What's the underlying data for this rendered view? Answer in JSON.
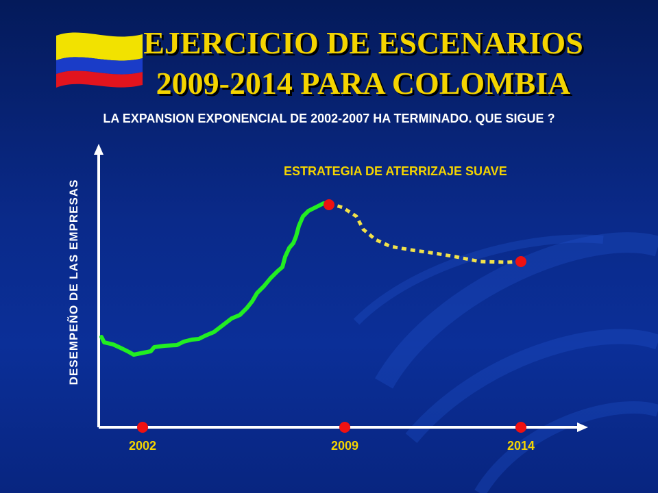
{
  "slide": {
    "title_line1": "EJERCICIO DE ESCENARIOS",
    "title_line2": "2009-2014 PARA  COLOMBIA",
    "subtitle": "LA EXPANSION EXPONENCIAL DE 2002-2007 HA TERMINADO. QUE SIGUE ?",
    "scenario_label": "ESTRATEGIA DE ATERRIZAJE SUAVE",
    "flag": {
      "colors": [
        "#f2e200",
        "#1a3cc8",
        "#e2141e"
      ]
    }
  },
  "chart_data": {
    "type": "line",
    "ylabel": "DESEMPEÑO DE LAS EMPRESAS",
    "x_ticks": [
      "2002",
      "2009",
      "2014"
    ],
    "colors": {
      "historical": "#22ee22",
      "scenario": "#f2e24a",
      "marker": "#ee1111",
      "axis": "#ffffff"
    }
  }
}
